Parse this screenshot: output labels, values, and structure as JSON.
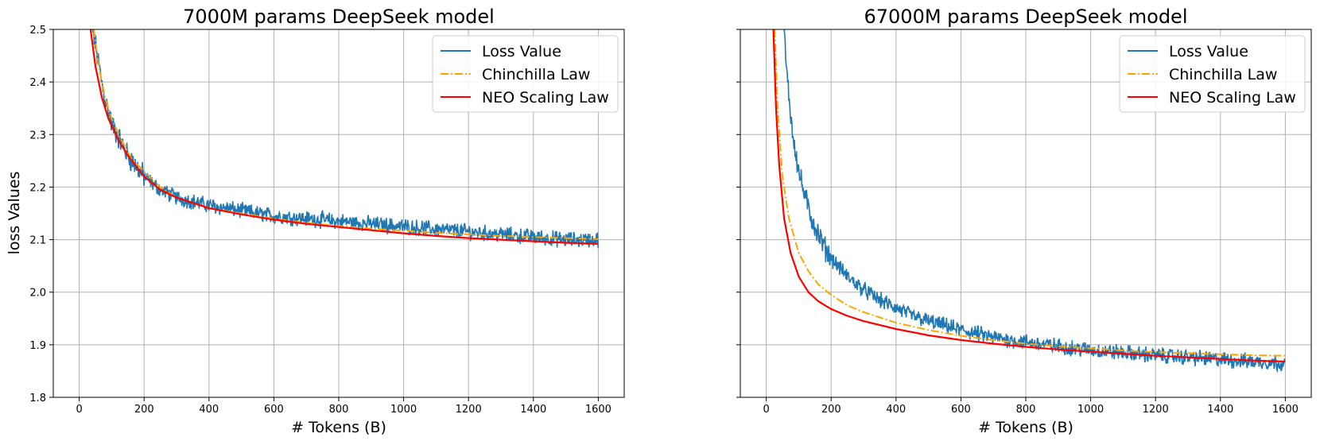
{
  "chart_data": [
    {
      "type": "line",
      "title": "7000M params DeepSeek model",
      "xlabel": "# Tokens (B)",
      "ylabel": "loss Values",
      "xlim": [
        -80,
        1680
      ],
      "ylim": [
        1.8,
        2.5
      ],
      "xticks": [
        0,
        200,
        400,
        600,
        800,
        1000,
        1200,
        1400,
        1600
      ],
      "yticks": [
        1.8,
        1.9,
        2.0,
        2.1,
        2.2,
        2.3,
        2.4,
        2.5
      ],
      "xtick_labels": [
        "0",
        "200",
        "400",
        "600",
        "800",
        "1000",
        "1200",
        "1400",
        "1600"
      ],
      "ytick_labels": [
        "1.8",
        "1.9",
        "2.0",
        "2.1",
        "2.2",
        "2.3",
        "2.4",
        "2.5"
      ],
      "grid": true,
      "legend_position": "top-right",
      "series": [
        {
          "name": "Loss Value",
          "style": "solid-noisy",
          "color": "#1f77b4",
          "x": [
            30,
            50,
            75,
            100,
            125,
            150,
            200,
            250,
            300,
            400,
            500,
            600,
            700,
            800,
            900,
            1000,
            1100,
            1200,
            1300,
            1400,
            1500,
            1600
          ],
          "y": [
            2.55,
            2.47,
            2.38,
            2.32,
            2.29,
            2.26,
            2.22,
            2.195,
            2.18,
            2.165,
            2.155,
            2.145,
            2.14,
            2.135,
            2.13,
            2.125,
            2.12,
            2.115,
            2.11,
            2.105,
            2.1,
            2.1
          ]
        },
        {
          "name": "Chinchilla Law",
          "style": "dashdot",
          "color": "#ffa500",
          "x": [
            45,
            60,
            80,
            100,
            130,
            160,
            200,
            250,
            300,
            400,
            500,
            600,
            700,
            800,
            900,
            1000,
            1100,
            1200,
            1300,
            1400,
            1500,
            1600
          ],
          "y": [
            2.5,
            2.43,
            2.37,
            2.33,
            2.29,
            2.255,
            2.23,
            2.2,
            2.18,
            2.16,
            2.15,
            2.14,
            2.132,
            2.126,
            2.121,
            2.117,
            2.113,
            2.11,
            2.107,
            2.105,
            2.103,
            2.101
          ]
        },
        {
          "name": "NEO Scaling Law",
          "style": "solid",
          "color": "#ff0000",
          "x": [
            35,
            50,
            70,
            90,
            120,
            150,
            200,
            250,
            300,
            400,
            500,
            600,
            700,
            800,
            900,
            1000,
            1100,
            1200,
            1300,
            1400,
            1500,
            1600
          ],
          "y": [
            2.5,
            2.43,
            2.37,
            2.33,
            2.29,
            2.26,
            2.22,
            2.195,
            2.18,
            2.16,
            2.148,
            2.138,
            2.13,
            2.124,
            2.118,
            2.112,
            2.107,
            2.103,
            2.1,
            2.097,
            2.094,
            2.092
          ]
        }
      ]
    },
    {
      "type": "line",
      "title": "67000M params DeepSeek model",
      "xlabel": "# Tokens (B)",
      "ylabel": "",
      "xlim": [
        -80,
        1680
      ],
      "ylim": [
        1.8,
        2.5
      ],
      "xticks": [
        0,
        200,
        400,
        600,
        800,
        1000,
        1200,
        1400,
        1600
      ],
      "yticks": [
        1.8,
        1.9,
        2.0,
        2.1,
        2.2,
        2.3,
        2.4,
        2.5
      ],
      "xtick_labels": [
        "0",
        "200",
        "400",
        "600",
        "800",
        "1000",
        "1200",
        "1400",
        "1600"
      ],
      "ytick_labels": [],
      "grid": true,
      "legend_position": "top-right",
      "series": [
        {
          "name": "Loss Value",
          "style": "solid-noisy",
          "color": "#1f77b4",
          "x": [
            55,
            60,
            70,
            80,
            90,
            100,
            120,
            140,
            160,
            180,
            200,
            250,
            300,
            350,
            400,
            450,
            500,
            600,
            700,
            800,
            900,
            1000,
            1100,
            1200,
            1300,
            1400,
            1500,
            1600
          ],
          "y": [
            2.5,
            2.44,
            2.37,
            2.31,
            2.27,
            2.23,
            2.18,
            2.14,
            2.11,
            2.085,
            2.065,
            2.03,
            2.005,
            1.985,
            1.97,
            1.955,
            1.945,
            1.928,
            1.914,
            1.905,
            1.897,
            1.89,
            1.885,
            1.88,
            1.876,
            1.872,
            1.868,
            1.865
          ]
        },
        {
          "name": "Chinchilla Law",
          "style": "dashdot",
          "color": "#ffa500",
          "x": [
            26,
            35,
            50,
            70,
            100,
            130,
            160,
            200,
            250,
            300,
            400,
            500,
            600,
            700,
            800,
            900,
            1000,
            1100,
            1200,
            1300,
            1400,
            1500,
            1600
          ],
          "y": [
            2.5,
            2.35,
            2.22,
            2.14,
            2.075,
            2.04,
            2.015,
            1.995,
            1.975,
            1.962,
            1.942,
            1.928,
            1.917,
            1.909,
            1.902,
            1.897,
            1.893,
            1.889,
            1.886,
            1.884,
            1.882,
            1.88,
            1.879
          ]
        },
        {
          "name": "NEO Scaling Law",
          "style": "solid",
          "color": "#ff0000",
          "x": [
            22,
            30,
            40,
            55,
            75,
            100,
            130,
            160,
            200,
            250,
            300,
            400,
            500,
            600,
            700,
            800,
            900,
            1000,
            1100,
            1200,
            1300,
            1400,
            1500,
            1600
          ],
          "y": [
            2.5,
            2.35,
            2.24,
            2.14,
            2.075,
            2.03,
            2.0,
            1.983,
            1.968,
            1.955,
            1.945,
            1.93,
            1.918,
            1.909,
            1.902,
            1.896,
            1.891,
            1.887,
            1.883,
            1.879,
            1.876,
            1.873,
            1.87,
            1.868
          ]
        }
      ]
    }
  ]
}
